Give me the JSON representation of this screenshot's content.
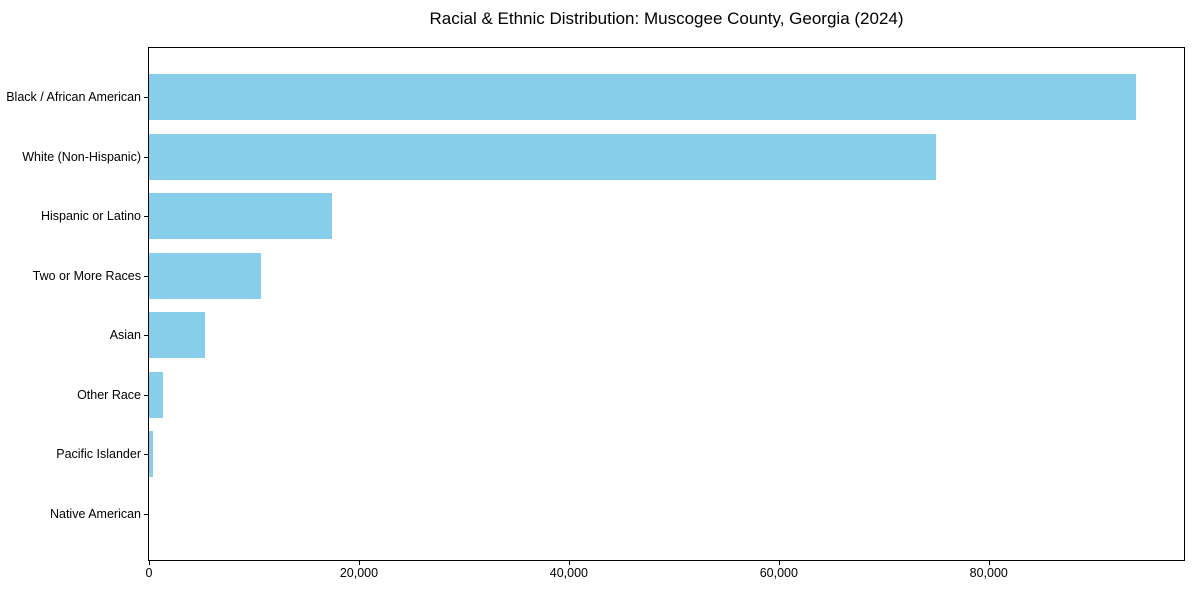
{
  "chart_data": {
    "type": "bar",
    "orientation": "horizontal",
    "title": "Racial & Ethnic Distribution: Muscogee County, Georgia (2024)",
    "categories": [
      "Black / African American",
      "White (Non-Hispanic)",
      "Hispanic or Latino",
      "Two or More Races",
      "Asian",
      "Other Race",
      "Pacific Islander",
      "Native American"
    ],
    "values": [
      94000,
      75000,
      17400,
      10700,
      5300,
      1300,
      400,
      0
    ],
    "xlabel": "",
    "ylabel": "",
    "xlim": [
      0,
      98600
    ],
    "xtick_values": [
      0,
      20000,
      40000,
      60000,
      80000
    ],
    "xtick_labels": [
      "0",
      "20,000",
      "40,000",
      "60,000",
      "80,000"
    ],
    "grid": false,
    "legend": "none",
    "bar_color": "#87CEEB",
    "axis_color": "#000000",
    "text_color": "#000000",
    "background_color": "#ffffff"
  }
}
